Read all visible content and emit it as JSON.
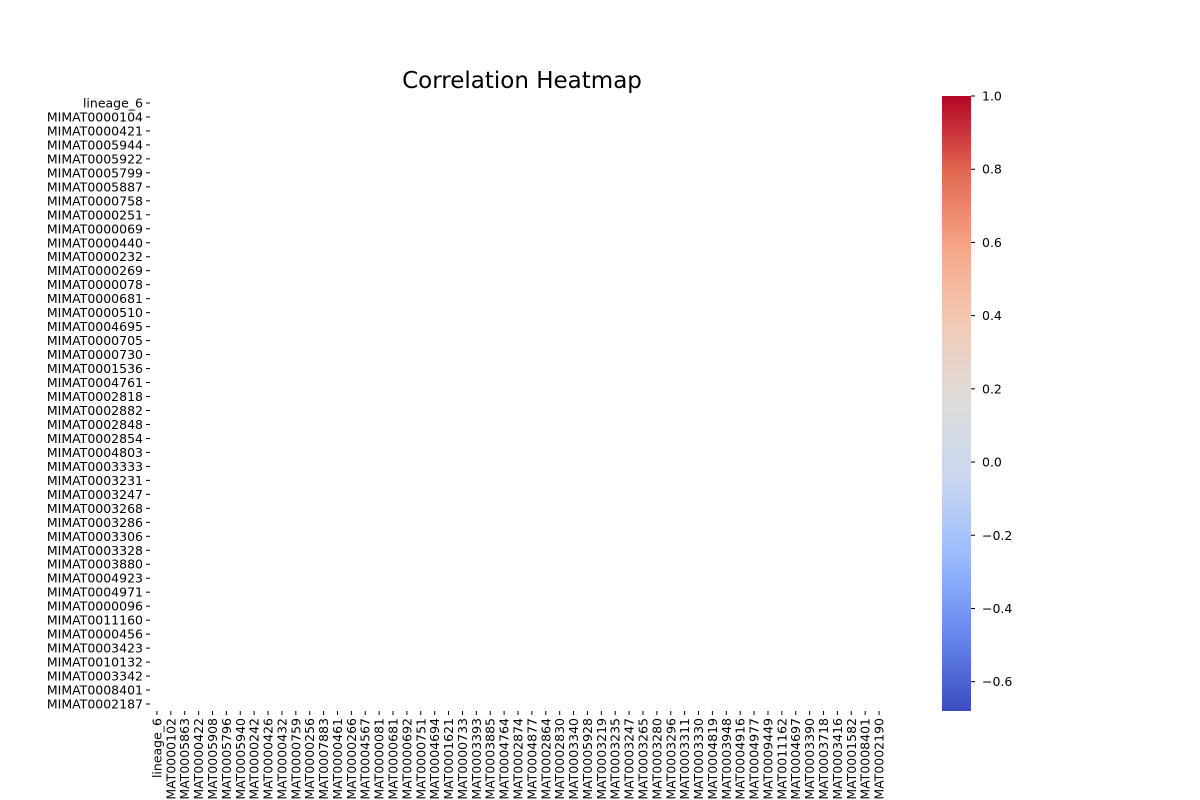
{
  "chart_data": {
    "type": "heatmap",
    "title": "Correlation Heatmap",
    "xlabel": "",
    "ylabel": "",
    "row_labels": [
      "lineage_6",
      "MIMAT0000104",
      "MIMAT0000421",
      "MIMAT0005944",
      "MIMAT0005922",
      "MIMAT0005799",
      "MIMAT0005887",
      "MIMAT0000758",
      "MIMAT0000251",
      "MIMAT0000069",
      "MIMAT0000440",
      "MIMAT0000232",
      "MIMAT0000269",
      "MIMAT0000078",
      "MIMAT0000681",
      "MIMAT0000510",
      "MIMAT0004695",
      "MIMAT0000705",
      "MIMAT0000730",
      "MIMAT0001536",
      "MIMAT0004761",
      "MIMAT0002818",
      "MIMAT0002882",
      "MIMAT0002848",
      "MIMAT0002854",
      "MIMAT0004803",
      "MIMAT0003333",
      "MIMAT0003231",
      "MIMAT0003247",
      "MIMAT0003268",
      "MIMAT0003286",
      "MIMAT0003306",
      "MIMAT0003328",
      "MIMAT0003880",
      "MIMAT0004923",
      "MIMAT0004971",
      "MIMAT0000096",
      "MIMAT0011160",
      "MIMAT0000456",
      "MIMAT0003423",
      "MIMAT0010132",
      "MIMAT0003342",
      "MIMAT0008401",
      "MIMAT0002187"
    ],
    "col_labels": [
      "lineage_6",
      "MIMAT0000102",
      "MIMAT0005863",
      "MIMAT0000422",
      "MIMAT0005908",
      "MIMAT0005796",
      "MIMAT0005940",
      "MIMAT0000242",
      "MIMAT0000426",
      "MIMAT0000432",
      "MIMAT0000759",
      "MIMAT0000256",
      "MIMAT0007883",
      "MIMAT0000461",
      "MIMAT0000266",
      "MIMAT0004567",
      "MIMAT0000081",
      "MIMAT0000681",
      "MIMAT0000692",
      "MIMAT0000751",
      "MIMAT0004694",
      "MIMAT0001621",
      "MIMAT0000733",
      "MIMAT0003393",
      "MIMAT0003885",
      "MIMAT0004764",
      "MIMAT0002874",
      "MIMAT0004877",
      "MIMAT0002864",
      "MIMAT0002830",
      "MIMAT0003340",
      "MIMAT0005928",
      "MIMAT0003219",
      "MIMAT0003235",
      "MIMAT0003247",
      "MIMAT0003265",
      "MIMAT0003280",
      "MIMAT0003296",
      "MIMAT0003311",
      "MIMAT0003330",
      "MIMAT0004819",
      "MIMAT0003948",
      "MIMAT0004916",
      "MIMAT0004977",
      "MIMAT0009449",
      "MIMAT0011162",
      "MIMAT0004697",
      "MIMAT0003390",
      "MIMAT0003718",
      "MIMAT0003416",
      "MIMAT0001582",
      "MIMAT0008401",
      "MIMAT0002190"
    ],
    "values": [],
    "colorbar": {
      "min": -0.68,
      "max": 1.0,
      "ticks": [
        -0.6,
        -0.4,
        -0.2,
        0.0,
        0.2,
        0.4,
        0.6,
        0.8,
        1.0
      ],
      "tick_labels": [
        "−0.6",
        "−0.4",
        "−0.2",
        "0.0",
        "0.2",
        "0.4",
        "0.6",
        "0.8",
        "1.0"
      ],
      "colormap": "coolwarm",
      "colors": [
        "#3b4cc0",
        "#6788ee",
        "#9abbff",
        "#c9d7f0",
        "#dddcdc",
        "#f2cbb7",
        "#f7a889",
        "#e26952",
        "#b40426"
      ]
    },
    "grid": false,
    "legend": "colorbar-right"
  }
}
